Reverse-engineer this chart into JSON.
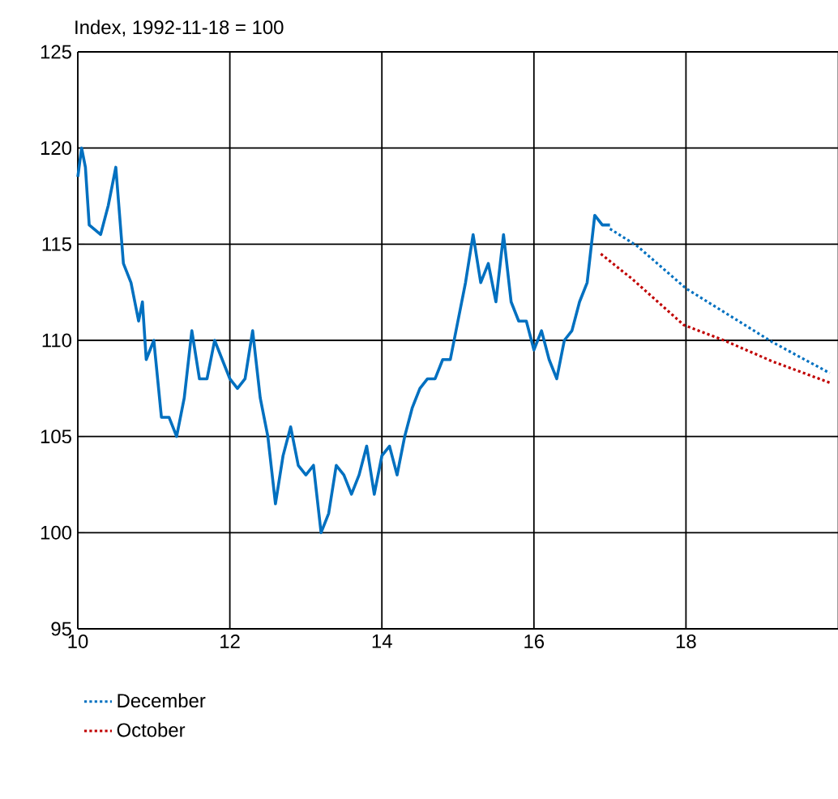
{
  "chart_data": {
    "type": "line",
    "title": "Index, 1992-11-18 = 100",
    "xlim": [
      10,
      20
    ],
    "xticks": [
      10,
      12,
      14,
      16,
      18
    ],
    "ylim": [
      95,
      125
    ],
    "yticks": [
      95,
      100,
      105,
      110,
      115,
      120,
      125
    ],
    "grid": true,
    "legend": "bottom",
    "marker": "none",
    "series": [
      {
        "color": "#0070c0",
        "line_style": "solid",
        "x": [
          10.0,
          10.05,
          10.1,
          10.15,
          10.3,
          10.4,
          10.5,
          10.6,
          10.7,
          10.8,
          10.85,
          10.9,
          11.0,
          11.1,
          11.2,
          11.3,
          11.4,
          11.5,
          11.6,
          11.7,
          11.8,
          11.9,
          12.0,
          12.1,
          12.2,
          12.3,
          12.4,
          12.5,
          12.6,
          12.7,
          12.8,
          12.9,
          13.0,
          13.1,
          13.2,
          13.3,
          13.4,
          13.5,
          13.6,
          13.7,
          13.8,
          13.9,
          14.0,
          14.1,
          14.2,
          14.3,
          14.4,
          14.5,
          14.6,
          14.7,
          14.8,
          14.9,
          15.0,
          15.1,
          15.2,
          15.3,
          15.4,
          15.5,
          15.6,
          15.7,
          15.8,
          15.9,
          16.0,
          16.1,
          16.2,
          16.3,
          16.4,
          16.5,
          16.6,
          16.7,
          16.8,
          16.9,
          17.0
        ],
        "values": [
          118.5,
          120,
          119,
          116,
          115.5,
          117,
          119,
          114,
          113,
          111,
          112,
          109,
          110,
          106,
          106,
          105,
          107,
          110.5,
          108,
          108,
          110,
          109,
          108,
          107.5,
          108,
          110.5,
          107,
          105,
          101.5,
          104,
          105.5,
          103.5,
          103,
          103.5,
          100,
          101,
          103.5,
          103,
          102,
          103,
          104.5,
          102,
          104,
          104.5,
          103,
          105,
          106.5,
          107.5,
          108,
          108,
          109,
          109,
          111,
          113,
          115.5,
          113,
          114,
          112,
          115.5,
          112,
          111,
          111,
          109.5,
          110.5,
          109,
          108,
          110,
          110.5,
          112,
          113,
          116.5,
          116,
          116
        ]
      },
      {
        "name": "December",
        "color": "#0070c0",
        "line_style": "dotted",
        "x": [
          17.0,
          17.36,
          18.0,
          18.57,
          19.14,
          19.89
        ],
        "values": [
          115.8,
          114.9,
          112.7,
          111.3,
          109.9,
          108.3
        ]
      },
      {
        "name": "October",
        "color": "#c00000",
        "line_style": "dotted",
        "x": [
          16.88,
          17.29,
          17.97,
          18.5,
          19.14,
          19.89
        ],
        "values": [
          114.5,
          113.2,
          110.8,
          110.0,
          108.9,
          107.8
        ]
      }
    ]
  }
}
